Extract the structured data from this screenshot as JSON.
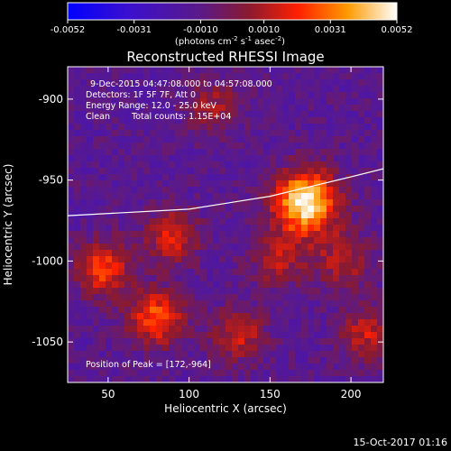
{
  "colorbar": {
    "tick_labels": [
      "-0.0052",
      "-0.0031",
      "-0.0010",
      "0.0010",
      "0.0031",
      "0.0052"
    ],
    "units_main": "(photons cm",
    "units_sup1": "-2",
    "units_mid1": " s",
    "units_sup2": "-1",
    "units_mid2": " asec",
    "units_sup3": "-2",
    "units_end": ")"
  },
  "image": {
    "title": "Reconstructed RHESSI Image",
    "time_range": "9-Dec-2015 04:47:08.000 to 04:57:08.000",
    "detectors": "Detectors: 1F 5F 7F, Att 0",
    "energy_range": "Energy Range: 12.0 - 25.0 keV",
    "clean": "Clean",
    "total_counts": "Total counts: 1.15E+04",
    "peak": "Position of Peak = [172,-964]",
    "timestamp": "15-Oct-2017 01:16"
  },
  "chart_data": {
    "type": "heatmap",
    "title": "Reconstructed RHESSI Image",
    "xlabel": "Heliocentric X (arcsec)",
    "ylabel": "Heliocentric Y (arcsec)",
    "xlim": [
      25,
      220
    ],
    "ylim": [
      -1075,
      -880
    ],
    "x_ticks": [
      50,
      100,
      150,
      200
    ],
    "y_ticks": [
      -900,
      -950,
      -1000,
      -1050
    ],
    "colorscale": {
      "min": -0.0052,
      "max": 0.0052
    },
    "peak_position": [
      172,
      -964
    ],
    "sources": [
      {
        "x": 172,
        "y": -964,
        "intensity": 1.0
      },
      {
        "x": 47,
        "y": -1005,
        "intensity": 0.55
      },
      {
        "x": 80,
        "y": -1035,
        "intensity": 0.6
      },
      {
        "x": 90,
        "y": -985,
        "intensity": 0.45
      },
      {
        "x": 130,
        "y": -1045,
        "intensity": 0.4
      },
      {
        "x": 155,
        "y": -1000,
        "intensity": 0.35
      },
      {
        "x": 195,
        "y": -1000,
        "intensity": 0.35
      },
      {
        "x": 210,
        "y": -1045,
        "intensity": 0.4
      },
      {
        "x": 115,
        "y": -905,
        "intensity": 0.3
      }
    ],
    "limb_curve": [
      [
        25,
        -972
      ],
      [
        100,
        -968
      ],
      [
        150,
        -960
      ],
      [
        200,
        -948
      ],
      [
        220,
        -943
      ]
    ],
    "grid": false
  }
}
